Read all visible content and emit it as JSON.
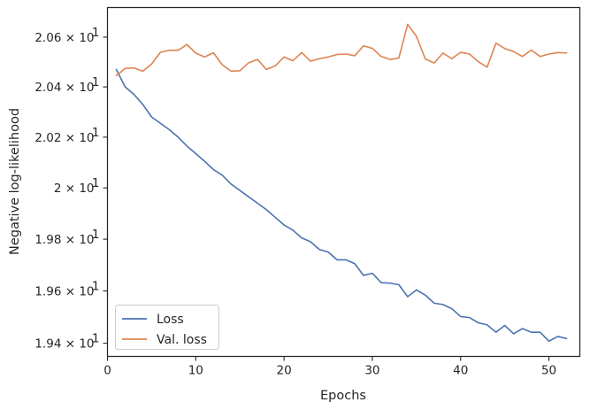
{
  "chart_data": {
    "type": "line",
    "title": "",
    "xlabel": "Epochs",
    "ylabel": "Negative log-likelihood",
    "yscale": "log",
    "xlim": [
      0,
      53.5
    ],
    "ylim": [
      19.35,
      20.72
    ],
    "x_ticks": [
      {
        "value": 0,
        "label": "0"
      },
      {
        "value": 10,
        "label": "10"
      },
      {
        "value": 20,
        "label": "20"
      },
      {
        "value": 30,
        "label": "30"
      },
      {
        "value": 40,
        "label": "40"
      },
      {
        "value": 50,
        "label": "50"
      }
    ],
    "y_ticks": [
      {
        "value": 19.4,
        "mantissa": "1.94",
        "base": "10",
        "exp": "1"
      },
      {
        "value": 19.6,
        "mantissa": "1.96",
        "base": "10",
        "exp": "1"
      },
      {
        "value": 19.8,
        "mantissa": "1.98",
        "base": "10",
        "exp": "1"
      },
      {
        "value": 20.0,
        "mantissa": "2",
        "base": "10",
        "exp": "1"
      },
      {
        "value": 20.2,
        "mantissa": "2.02",
        "base": "10",
        "exp": "1"
      },
      {
        "value": 20.4,
        "mantissa": "2.04",
        "base": "10",
        "exp": "1"
      },
      {
        "value": 20.6,
        "mantissa": "2.06",
        "base": "10",
        "exp": "1"
      }
    ],
    "grid": false,
    "legend_position": "lower-left",
    "x": [
      1,
      2,
      3,
      4,
      5,
      6,
      7,
      8,
      9,
      10,
      11,
      12,
      13,
      14,
      15,
      16,
      17,
      18,
      19,
      20,
      21,
      22,
      23,
      24,
      25,
      26,
      27,
      28,
      29,
      30,
      31,
      32,
      33,
      34,
      35,
      36,
      37,
      38,
      39,
      40,
      41,
      42,
      43,
      44,
      45,
      46,
      47,
      48,
      49,
      50,
      51,
      52
    ],
    "series": [
      {
        "name": "Loss",
        "color": "#4c72b0",
        "values": [
          20.47,
          20.4,
          20.37,
          20.33,
          20.28,
          20.255,
          20.23,
          20.2,
          20.165,
          20.135,
          20.105,
          20.072,
          20.05,
          20.015,
          19.99,
          19.965,
          19.94,
          19.915,
          19.885,
          19.855,
          19.835,
          19.805,
          19.79,
          19.76,
          19.75,
          19.72,
          19.72,
          19.705,
          19.66,
          19.668,
          19.632,
          19.63,
          19.624,
          19.578,
          19.604,
          19.584,
          19.553,
          19.548,
          19.532,
          19.502,
          19.498,
          19.478,
          19.47,
          19.442,
          19.468,
          19.436,
          19.456,
          19.442,
          19.442,
          19.408,
          19.426,
          19.418
        ]
      },
      {
        "name": "Val. loss",
        "color": "#dd8452",
        "values": [
          20.445,
          20.474,
          20.476,
          20.463,
          20.492,
          20.539,
          20.547,
          20.547,
          20.57,
          20.536,
          20.52,
          20.537,
          20.489,
          20.463,
          20.465,
          20.497,
          20.51,
          20.47,
          20.484,
          20.52,
          20.505,
          20.538,
          20.503,
          20.513,
          20.52,
          20.53,
          20.532,
          20.525,
          20.565,
          20.555,
          20.522,
          20.51,
          20.516,
          20.652,
          20.603,
          20.512,
          20.496,
          20.536,
          20.513,
          20.539,
          20.532,
          20.501,
          20.479,
          20.576,
          20.554,
          20.542,
          20.522,
          20.548,
          20.522,
          20.532,
          20.538,
          20.536
        ]
      }
    ]
  }
}
